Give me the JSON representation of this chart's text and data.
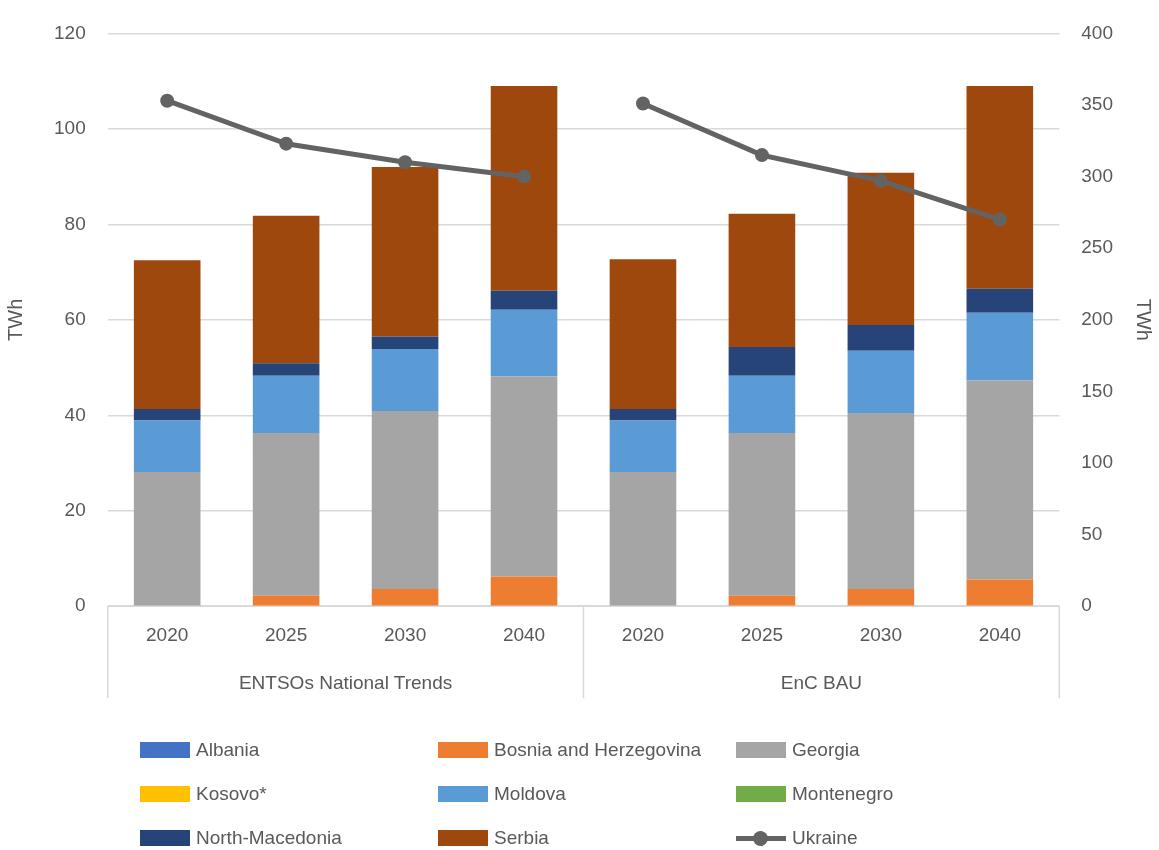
{
  "chart_data": {
    "type": "bar",
    "stacked": true,
    "categories": [
      "2020",
      "2025",
      "2030",
      "2040",
      "2020",
      "2025",
      "2030",
      "2040"
    ],
    "annotations": [
      "ENTSOs National Trends",
      "EnC BAU"
    ],
    "ylabel": "TWh",
    "y2label": "TWh",
    "ylim": [
      0,
      120
    ],
    "yticks": [
      0,
      20,
      40,
      60,
      80,
      100,
      120
    ],
    "y2lim": [
      0,
      400
    ],
    "y2ticks": [
      0,
      50,
      100,
      150,
      200,
      250,
      300,
      350,
      400
    ],
    "grid": "y",
    "legend": "bottom",
    "marker": "circle",
    "series": [
      {
        "name": "Albania",
        "color": "#4472c4",
        "values": [
          0,
          0,
          0,
          0,
          0,
          0,
          0,
          0
        ]
      },
      {
        "name": "Bosnia and Herzegovina",
        "color": "#ed7d31",
        "values": [
          0,
          2.2,
          3.6,
          6.2,
          0,
          2.2,
          3.6,
          5.6
        ]
      },
      {
        "name": "Georgia",
        "color": "#a5a5a5",
        "values": [
          28.1,
          34.1,
          37.3,
          41.9,
          28.1,
          34.1,
          36.9,
          41.7
        ]
      },
      {
        "name": "Kosovo*",
        "color": "#ffc000",
        "values": [
          0,
          0,
          0,
          0,
          0,
          0,
          0,
          0
        ]
      },
      {
        "name": "Moldova",
        "color": "#5b9bd5",
        "values": [
          10.8,
          12.0,
          13.0,
          14.0,
          10.8,
          12.0,
          13.0,
          14.2
        ]
      },
      {
        "name": "Montenegro",
        "color": "#70ad47",
        "values": [
          0,
          0,
          0,
          0,
          0,
          0,
          0,
          0
        ]
      },
      {
        "name": "North-Macedonia",
        "color": "#264478",
        "values": [
          2.4,
          2.6,
          2.6,
          4.0,
          2.4,
          6.0,
          5.4,
          5.0
        ]
      },
      {
        "name": "Serbia",
        "color": "#9e480e",
        "values": [
          31.2,
          30.9,
          35.5,
          42.9,
          31.4,
          27.9,
          31.9,
          42.5
        ]
      },
      {
        "name": "Ukraine",
        "type": "line",
        "axis": "y2",
        "color": "#636363",
        "values": [
          353,
          323,
          310,
          300,
          351,
          315,
          297,
          270
        ]
      }
    ]
  }
}
